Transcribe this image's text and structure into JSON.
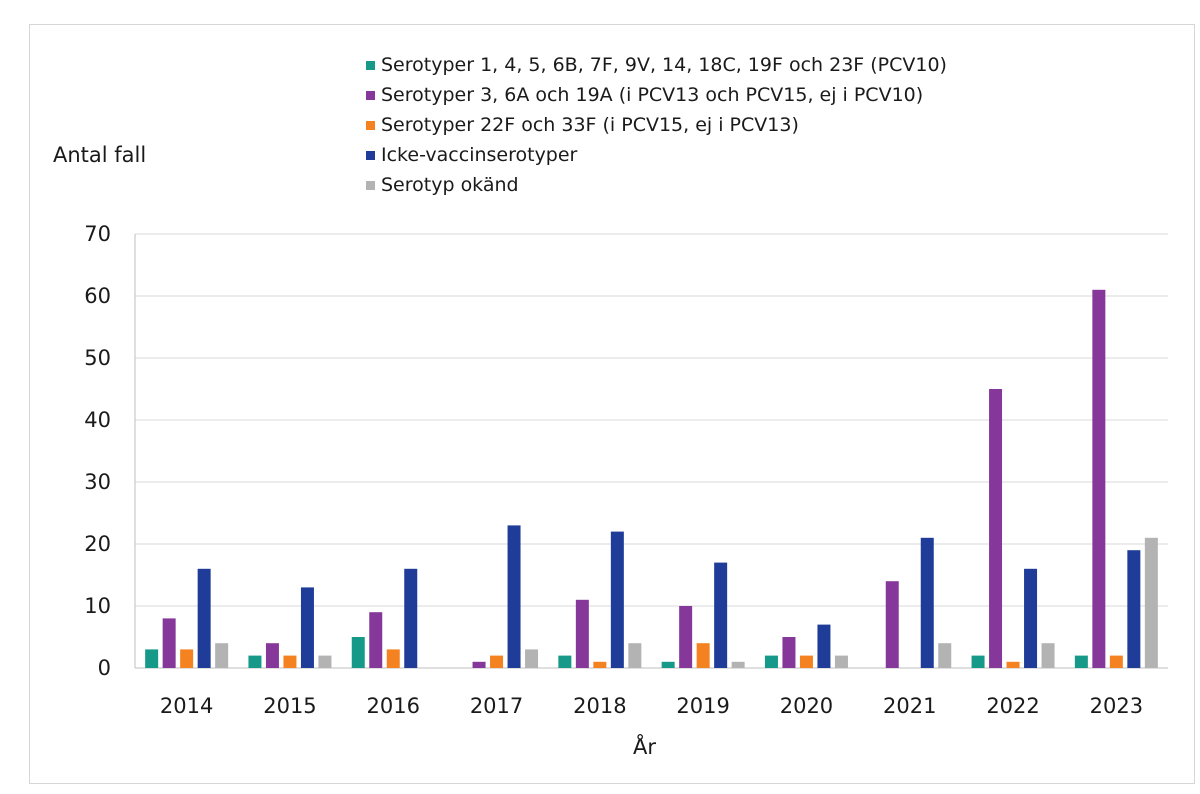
{
  "chart_data": {
    "type": "bar",
    "ylabel": "Antal fall",
    "xlabel": "År",
    "ylim": [
      0,
      70
    ],
    "yticks": [
      0,
      10,
      20,
      30,
      40,
      50,
      60,
      70
    ],
    "grid": true,
    "legend_position": "top",
    "categories": [
      "2014",
      "2015",
      "2016",
      "2017",
      "2018",
      "2019",
      "2020",
      "2021",
      "2022",
      "2023"
    ],
    "series": [
      {
        "name": "Serotyper 1, 4, 5, 6B, 7F, 9V, 14, 18C, 19F och 23F (PCV10)",
        "color": "#17998a",
        "values": [
          3,
          2,
          5,
          0,
          2,
          1,
          2,
          0,
          2,
          2
        ]
      },
      {
        "name": "Serotyper 3, 6A och 19A (i PCV13 och PCV15, ej i PCV10)",
        "color": "#86389a",
        "values": [
          8,
          4,
          9,
          1,
          11,
          10,
          5,
          14,
          45,
          61
        ]
      },
      {
        "name": "Serotyper 22F och 33F (i PCV15, ej i PCV13)",
        "color": "#f58220",
        "values": [
          3,
          2,
          3,
          2,
          1,
          4,
          2,
          0,
          1,
          2
        ]
      },
      {
        "name": "Icke-vaccinserotyper",
        "color": "#1f3c99",
        "values": [
          16,
          13,
          16,
          23,
          22,
          17,
          7,
          21,
          16,
          19
        ]
      },
      {
        "name": "Serotyp okänd",
        "color": "#b3b3b3",
        "values": [
          4,
          2,
          0,
          3,
          4,
          1,
          2,
          4,
          4,
          21
        ]
      }
    ]
  }
}
